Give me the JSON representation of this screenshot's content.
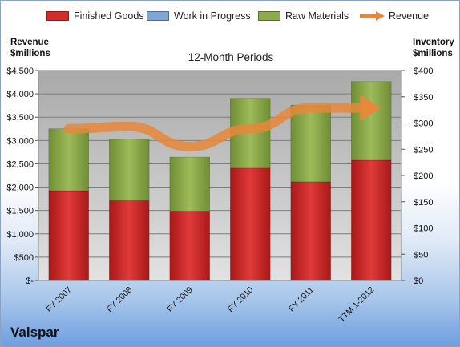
{
  "chart_data": {
    "type": "bar",
    "stacked": true,
    "title": "12-Month Periods",
    "categories": [
      "FY 2007",
      "FY 2008",
      "FY 2009",
      "FY 2010",
      "FY 2011",
      "TTM 1-2012"
    ],
    "series": [
      {
        "name": "Finished Goods",
        "axis": "right",
        "color": "#d42a2a",
        "values": [
          171,
          152,
          132,
          214,
          188,
          229
        ]
      },
      {
        "name": "Work in Progress",
        "axis": "right",
        "color": "#7ea7d8",
        "values": [
          0,
          0,
          0,
          0,
          0,
          0
        ]
      },
      {
        "name": "Raw Materials",
        "axis": "right",
        "color": "#8cab4a",
        "values": [
          118,
          117,
          103,
          133,
          146,
          150
        ]
      },
      {
        "name": "Revenue",
        "axis": "left",
        "type": "line",
        "color": "#e8873a",
        "values": [
          3250,
          3300,
          2870,
          3250,
          3700,
          3700
        ]
      }
    ],
    "left_axis": {
      "title": "Revenue\n$millions",
      "ylim": [
        0,
        4500
      ],
      "ticks": [
        "$-",
        "$500",
        "$1,000",
        "$1,500",
        "$2,000",
        "$2,500",
        "$3,000",
        "$3,500",
        "$4,000",
        "$4,500"
      ]
    },
    "right_axis": {
      "title": "Inventory\n$millions",
      "ylim": [
        0,
        400
      ],
      "ticks": [
        "$0",
        "$50",
        "$100",
        "$150",
        "$200",
        "$250",
        "$300",
        "$350",
        "$400"
      ]
    },
    "legend_position": "top",
    "grid": true
  },
  "company": "Valspar"
}
